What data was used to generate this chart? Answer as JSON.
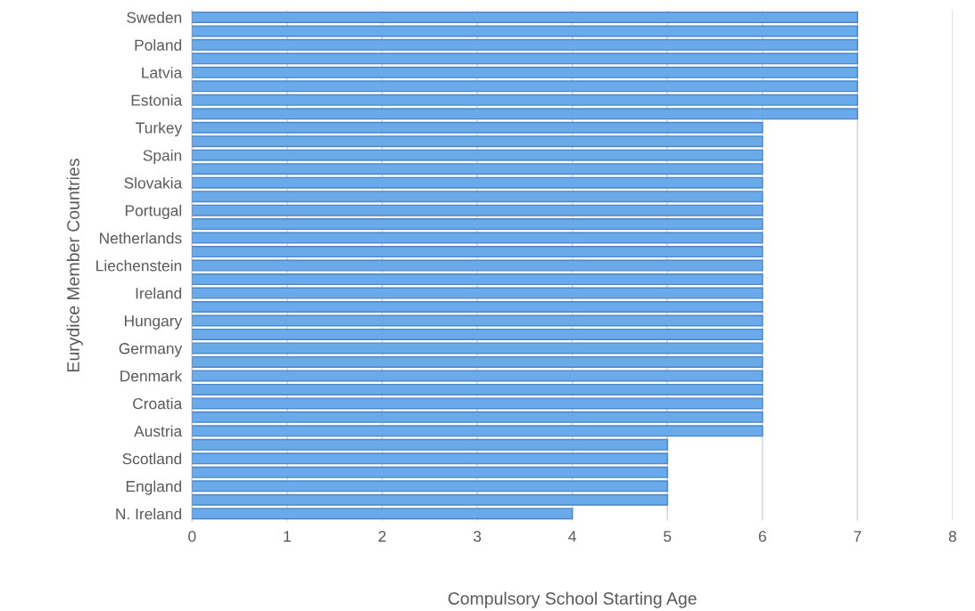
{
  "chart_data": {
    "type": "bar",
    "orientation": "horizontal",
    "xlabel": "Compulsory School Starting Age",
    "ylabel": "Eurydice Member Countries",
    "categories": [
      "Sweden",
      null,
      "Poland",
      null,
      "Latvia",
      null,
      "Estonia",
      null,
      "Turkey",
      null,
      "Spain",
      null,
      "Slovakia",
      null,
      "Portugal",
      null,
      "Netherlands",
      null,
      "Liechenstein",
      null,
      "Ireland",
      null,
      "Hungary",
      null,
      "Germany",
      null,
      "Denmark",
      null,
      "Croatia",
      null,
      "Austria",
      null,
      "Scotland",
      null,
      "England",
      null,
      "N. Ireland"
    ],
    "values": [
      7,
      7,
      7,
      7,
      7,
      7,
      7,
      7,
      6,
      6,
      6,
      6,
      6,
      6,
      6,
      6,
      6,
      6,
      6,
      6,
      6,
      6,
      6,
      6,
      6,
      6,
      6,
      6,
      6,
      6,
      6,
      5,
      5,
      5,
      5,
      5,
      4
    ],
    "color": "#6aaaea",
    "xlim": [
      0,
      8
    ],
    "xticks": [
      0,
      1,
      2,
      3,
      4,
      5,
      6,
      7,
      8
    ],
    "grid": "x"
  }
}
